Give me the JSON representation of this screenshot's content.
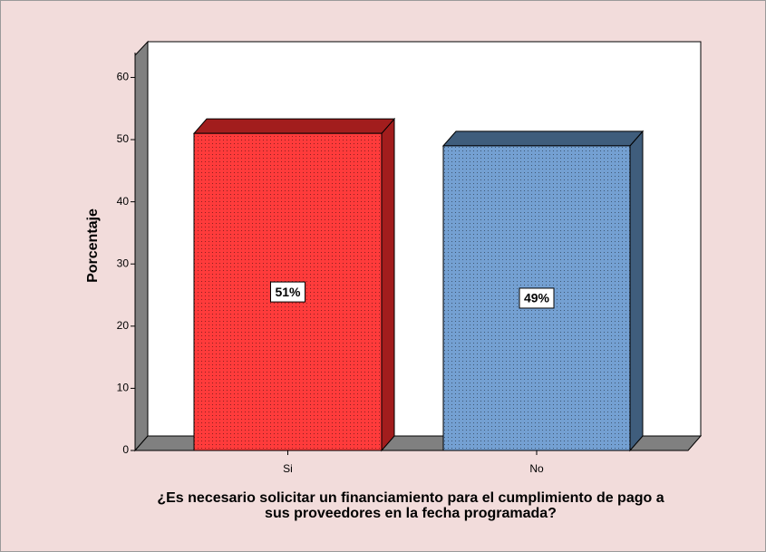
{
  "chart_data": {
    "type": "bar3d",
    "ylabel": "Porcentaje",
    "xlabel": "¿Es necesario solicitar un financiamiento para el cumplimiento de pago a sus proveedores en la fecha programada?",
    "categories": [
      "Si",
      "No"
    ],
    "values": [
      51,
      49
    ],
    "value_labels": [
      "51%",
      "49%"
    ],
    "colors": [
      "#ff3b3b",
      "#74a0d2"
    ],
    "side_colors": [
      "#a21d1d",
      "#3f5d7c"
    ],
    "ylim": [
      0,
      64
    ],
    "yticks": [
      0,
      10,
      20,
      30,
      40,
      50,
      60
    ]
  }
}
